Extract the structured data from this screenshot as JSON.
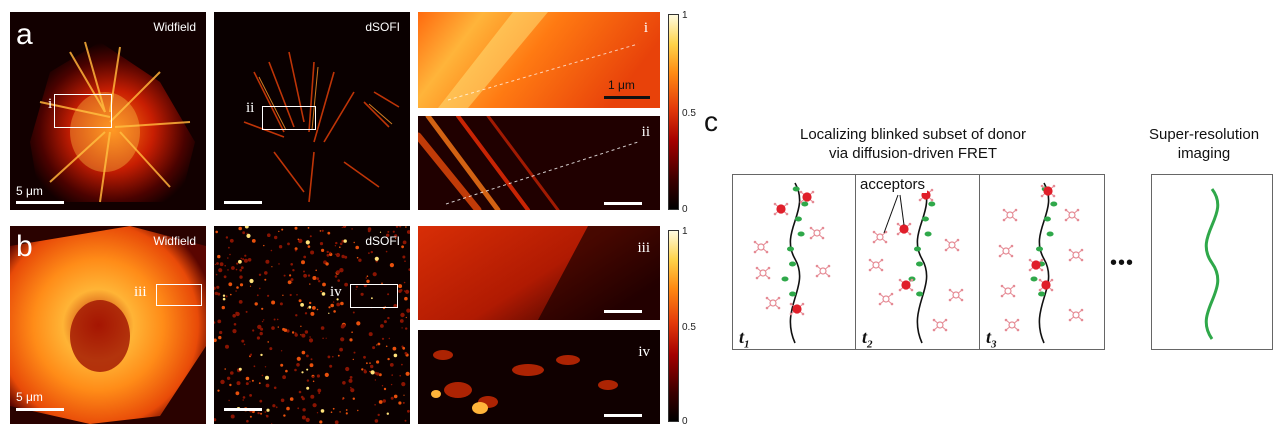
{
  "panel_a": {
    "letter": "a",
    "widefield_label": "Widfield",
    "dsofi_label": "dSOFI",
    "roi_i": "i",
    "roi_ii": "ii",
    "scalebar_label": "5 μm",
    "zoom_scalebar_label": "1 μm",
    "colorbar_ticks": [
      "1",
      "0.5",
      "0"
    ]
  },
  "panel_b": {
    "letter": "b",
    "widefield_label": "Widfield",
    "dsofi_label": "dSOFI",
    "roi_iii": "iii",
    "roi_iv": "iv",
    "scalebar_label": "5 μm",
    "colorbar_ticks": [
      "1",
      "0.5",
      "0"
    ]
  },
  "panel_c": {
    "letter": "c",
    "heading_left_line1": "Localizing blinked subset of donor",
    "heading_left_line2": "via diffusion-driven FRET",
    "heading_right_line1": "Super-resolution",
    "heading_right_line2": "imaging",
    "acceptors_label": "acceptors",
    "time_labels": [
      {
        "t": "t",
        "sub": "1"
      },
      {
        "t": "t",
        "sub": "2"
      },
      {
        "t": "t",
        "sub": "3"
      }
    ],
    "ellipsis": "•••"
  },
  "colors": {
    "hot_dark": "#1a0000",
    "hot_mid": "#d83a06",
    "hot_bright": "#ffd34a",
    "donor_green": "#2fa84a",
    "acceptor_red": "#e01f2a",
    "acceptor_pink": "#e58a94"
  }
}
